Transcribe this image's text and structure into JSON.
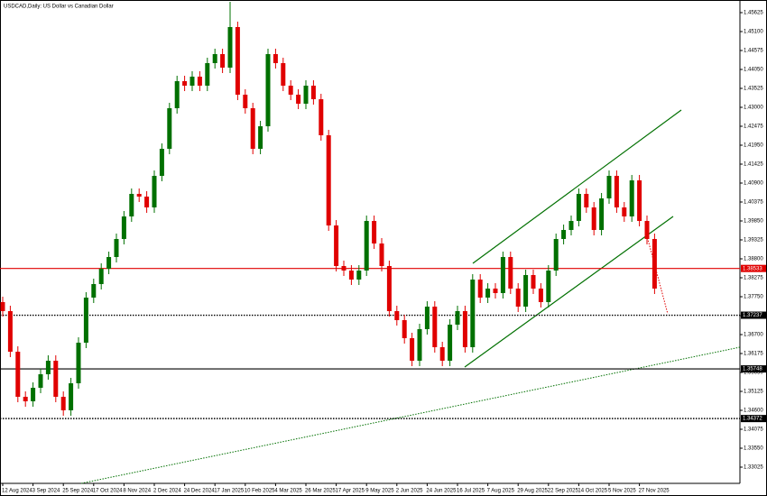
{
  "chart_data": {
    "type": "candlestick",
    "title": "USDCAD,Daily: US Dollar vs Canadian Dollar",
    "categories": [
      "12 Aug 2024",
      null,
      null,
      null,
      "3 Sep 2024",
      null,
      null,
      null,
      "25 Sep 2024",
      null,
      null,
      null,
      "17 Oct 2024",
      null,
      null,
      null,
      "8 Nov 2024",
      null,
      null,
      null,
      "2 Dec 2024",
      null,
      null,
      null,
      "24 Dec 2024",
      null,
      null,
      null,
      "17 Jan 2025",
      null,
      null,
      null,
      "10 Feb 2025",
      null,
      null,
      null,
      "4 Mar 2025",
      null,
      null,
      null,
      "26 Mar 2025",
      null,
      null,
      null,
      "17 Apr 2025",
      null,
      null,
      null,
      "9 May 2025",
      null,
      null,
      null,
      "2 Jun 2025",
      null,
      null,
      null,
      "24 Jun 2025",
      null,
      null,
      null,
      "16 Jul 2025",
      null,
      null,
      null,
      "7 Aug 2025",
      null,
      null,
      null,
      "29 Aug 2025",
      null,
      null,
      null,
      "22 Sep 2025",
      null,
      null,
      null,
      "14 Oct 2025",
      null,
      null,
      null,
      "5 Nov 2025",
      null,
      null,
      null,
      "27 Nov 2025",
      null,
      null
    ],
    "open": [
      1.376,
      1.3735,
      1.36225,
      1.34975,
      1.3485,
      1.35225,
      1.356,
      1.35975,
      1.34975,
      1.346,
      1.3535,
      1.36475,
      1.37725,
      1.381,
      1.38525,
      1.3885,
      1.3935,
      1.39975,
      1.406,
      1.40525,
      1.40225,
      1.411,
      1.4185,
      1.42975,
      1.43725,
      1.436,
      1.4385,
      1.436,
      1.44225,
      1.44475,
      1.441,
      1.45225,
      1.4335,
      1.42975,
      1.4185,
      1.42475,
      1.44475,
      1.44225,
      1.436,
      1.4335,
      1.431,
      1.436,
      1.43225,
      1.42225,
      1.39725,
      1.386,
      1.38475,
      1.38225,
      1.38475,
      1.3985,
      1.39225,
      1.386,
      1.3735,
      1.371,
      1.366,
      1.35975,
      1.3685,
      1.37475,
      1.3635,
      1.35975,
      1.36975,
      1.3735,
      1.3635,
      1.38225,
      1.37725,
      1.37975,
      1.3785,
      1.3885,
      1.37975,
      1.37475,
      1.3835,
      1.37975,
      1.376,
      1.38475,
      1.3935,
      1.396,
      1.3985,
      1.406,
      1.40225,
      1.396,
      1.40475,
      1.411,
      1.40225,
      1.39975,
      1.40975,
      1.3985,
      1.3935
    ],
    "high": [
      1.3775,
      1.375,
      1.36375,
      1.35125,
      1.35375,
      1.3575,
      1.36125,
      1.36125,
      1.35125,
      1.355,
      1.36625,
      1.37875,
      1.3825,
      1.38675,
      1.39,
      1.395,
      1.40125,
      1.4075,
      1.4075,
      1.40675,
      1.4125,
      1.42,
      1.43125,
      1.43875,
      1.43875,
      1.44,
      1.44,
      1.44375,
      1.44625,
      1.44625,
      1.45925,
      1.45375,
      1.435,
      1.43125,
      1.42625,
      1.44625,
      1.44625,
      1.44375,
      1.4375,
      1.435,
      1.4375,
      1.4375,
      1.43375,
      1.42375,
      1.39875,
      1.3875,
      1.38625,
      1.38625,
      1.4,
      1.4,
      1.39375,
      1.3875,
      1.375,
      1.3725,
      1.3675,
      1.37,
      1.37625,
      1.37625,
      1.365,
      1.37125,
      1.375,
      1.375,
      1.38375,
      1.38375,
      1.38125,
      1.38125,
      1.39,
      1.39,
      1.38125,
      1.385,
      1.385,
      1.38125,
      1.38625,
      1.395,
      1.3975,
      1.4,
      1.4075,
      1.4075,
      1.40375,
      1.40625,
      1.4125,
      1.4125,
      1.40375,
      1.41125,
      1.41125,
      1.4,
      1.395
    ],
    "low": [
      1.372,
      1.36075,
      1.34825,
      1.347,
      1.347,
      1.35075,
      1.3545,
      1.34825,
      1.3445,
      1.3445,
      1.352,
      1.36325,
      1.37575,
      1.3795,
      1.38375,
      1.387,
      1.392,
      1.39825,
      1.40375,
      1.40075,
      1.40075,
      1.4095,
      1.417,
      1.42825,
      1.4345,
      1.4345,
      1.4345,
      1.4345,
      1.44075,
      1.4395,
      1.4395,
      1.432,
      1.42825,
      1.417,
      1.417,
      1.42325,
      1.44075,
      1.4345,
      1.432,
      1.4295,
      1.4295,
      1.43075,
      1.42075,
      1.39575,
      1.3845,
      1.38325,
      1.38075,
      1.38075,
      1.38325,
      1.39075,
      1.3845,
      1.372,
      1.3695,
      1.3645,
      1.35825,
      1.35825,
      1.367,
      1.362,
      1.35825,
      1.35825,
      1.36825,
      1.362,
      1.362,
      1.37575,
      1.37575,
      1.377,
      1.377,
      1.37825,
      1.37325,
      1.37325,
      1.37825,
      1.3745,
      1.3745,
      1.38325,
      1.392,
      1.3945,
      1.397,
      1.40075,
      1.3945,
      1.3945,
      1.40325,
      1.40075,
      1.39825,
      1.39825,
      1.397,
      1.392,
      1.37825
    ],
    "close": [
      1.3735,
      1.36225,
      1.34975,
      1.3485,
      1.35225,
      1.356,
      1.35975,
      1.34975,
      1.346,
      1.3535,
      1.36475,
      1.37725,
      1.381,
      1.38525,
      1.3885,
      1.3935,
      1.39975,
      1.406,
      1.40525,
      1.40225,
      1.411,
      1.4185,
      1.42975,
      1.43725,
      1.436,
      1.4385,
      1.436,
      1.44225,
      1.44475,
      1.441,
      1.45225,
      1.4335,
      1.42975,
      1.4185,
      1.42475,
      1.44475,
      1.44225,
      1.436,
      1.4335,
      1.431,
      1.436,
      1.43225,
      1.42225,
      1.39725,
      1.386,
      1.38475,
      1.38225,
      1.38475,
      1.3985,
      1.39225,
      1.386,
      1.3735,
      1.371,
      1.366,
      1.35975,
      1.3685,
      1.37475,
      1.3635,
      1.35975,
      1.36975,
      1.3735,
      1.3635,
      1.38225,
      1.37725,
      1.37975,
      1.3785,
      1.3885,
      1.37975,
      1.37475,
      1.3835,
      1.37975,
      1.376,
      1.38475,
      1.3935,
      1.396,
      1.3985,
      1.406,
      1.40225,
      1.396,
      1.40475,
      1.411,
      1.40225,
      1.39975,
      1.40975,
      1.3985,
      1.3935,
      1.37975
    ],
    "up_color": "#007000",
    "down_color": "#e00000",
    "ylim": [
      1.32575,
      1.45975
    ],
    "yticks": [
      1.45625,
      {
        "value": 1.451,
        "label": "1.45100"
      },
      1.44575,
      {
        "value": 1.4405,
        "label": "1.44050"
      },
      1.43525,
      {
        "value": 1.43,
        "label": "1.43000"
      },
      1.42475,
      {
        "value": 1.4195,
        "label": "1.41950"
      },
      1.41425,
      {
        "value": 1.409,
        "label": "1.40900"
      },
      1.40375,
      {
        "value": 1.3985,
        "label": "1.39850"
      },
      1.39325,
      {
        "value": 1.388,
        "label": "1.38800"
      },
      1.38275,
      {
        "value": 1.3775,
        "label": "1.37750"
      },
      1.37225,
      {
        "value": 1.367,
        "label": "1.36700"
      },
      1.36175,
      {
        "value": 1.3565,
        "label": "1.35650"
      },
      1.35125,
      {
        "value": 1.346,
        "label": "1.34600"
      },
      1.34075,
      {
        "value": 1.3355,
        "label": "1.33550"
      },
      1.33025
    ],
    "levels": [
      {
        "value": 1.38533,
        "color": "#e00000",
        "style": "solid"
      },
      {
        "value": 1.37237,
        "color": "#000000",
        "style": "dotted"
      },
      {
        "value": 1.35748,
        "color": "#000000",
        "style": "solid"
      },
      {
        "value": 1.34372,
        "color": "#000000",
        "style": "dotted"
      }
    ]
  }
}
